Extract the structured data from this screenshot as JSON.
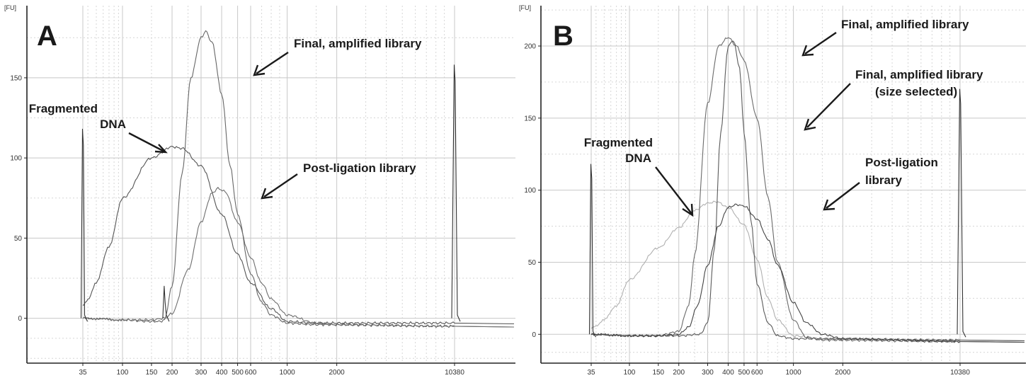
{
  "chart_data": [
    {
      "type": "line",
      "panel": "A",
      "ylabel": "[FU]",
      "x_scale": "log",
      "x_tick_labels": [
        "35",
        "100",
        "150",
        "200",
        "300",
        "400",
        "500",
        "600",
        "1000",
        "2000",
        "10380"
      ],
      "y_ticks": [
        0,
        50,
        100,
        150
      ],
      "ylim": [
        -28,
        195
      ],
      "grid": true,
      "series": [
        {
          "name": "Fragmented DNA",
          "color": "#555555",
          "peak_x": 210,
          "peak_y": 107,
          "x": [
            35,
            36,
            40,
            50,
            70,
            100,
            150,
            200,
            230,
            300,
            400,
            500,
            600,
            800,
            1000,
            1500,
            2000,
            10380
          ],
          "y": [
            8,
            9,
            12,
            22,
            45,
            75,
            100,
            107,
            106,
            95,
            65,
            40,
            22,
            6,
            -2,
            -3,
            -3,
            -3
          ]
        },
        {
          "name": "Final, amplified library",
          "color": "#666666",
          "peak_x": 320,
          "peak_y": 179,
          "x": [
            35,
            100,
            150,
            170,
            180,
            200,
            230,
            260,
            300,
            320,
            350,
            400,
            450,
            500,
            600,
            700,
            800,
            1000,
            1500,
            10380
          ],
          "y": [
            0,
            -1,
            -2,
            -2,
            -1,
            20,
            90,
            150,
            175,
            179,
            172,
            140,
            95,
            65,
            28,
            10,
            2,
            -3,
            -4,
            -5
          ]
        },
        {
          "name": "Post-ligation library",
          "color": "#6e6e6e",
          "peak_x": 380,
          "peak_y": 81,
          "x": [
            35,
            100,
            150,
            180,
            200,
            250,
            300,
            350,
            380,
            420,
            500,
            600,
            700,
            800,
            1000,
            1500,
            2000,
            10380
          ],
          "y": [
            0,
            -1,
            -1,
            0,
            3,
            30,
            60,
            78,
            81,
            79,
            60,
            38,
            22,
            12,
            2,
            -3,
            -4,
            -5
          ]
        }
      ],
      "marker_peaks": [
        {
          "x": 35,
          "y": 118
        },
        {
          "x": 10380,
          "y": 158
        },
        {
          "x": 180,
          "y": 20
        }
      ],
      "annotations": [
        "Fragmented DNA",
        "Final, amplified library",
        "Post-ligation library"
      ]
    },
    {
      "type": "line",
      "panel": "B",
      "ylabel": "[FU]",
      "x_scale": "log",
      "x_tick_labels": [
        "35",
        "100",
        "150",
        "200",
        "300",
        "400",
        "500",
        "600",
        "1000",
        "2000",
        "10380"
      ],
      "y_ticks": [
        0,
        50,
        100,
        150,
        200
      ],
      "ylim": [
        -20,
        228
      ],
      "grid": true,
      "series": [
        {
          "name": "Fragmented DNA",
          "color": "#b0b0b0",
          "peak_x": 340,
          "peak_y": 92,
          "x": [
            35,
            40,
            50,
            70,
            100,
            150,
            200,
            250,
            300,
            340,
            400,
            500,
            600,
            700,
            800,
            1000,
            1500,
            10380
          ],
          "y": [
            4,
            6,
            10,
            20,
            38,
            60,
            74,
            86,
            91,
            92,
            88,
            76,
            52,
            25,
            10,
            -1,
            -3,
            -4
          ]
        },
        {
          "name": "Final, amplified library",
          "color": "#6a6a6a",
          "peak_x": 400,
          "peak_y": 206,
          "x": [
            35,
            100,
            150,
            200,
            230,
            250,
            300,
            350,
            400,
            450,
            500,
            600,
            700,
            800,
            1000,
            1200,
            1500,
            10380
          ],
          "y": [
            0,
            -1,
            -1,
            2,
            20,
            55,
            160,
            200,
            206,
            200,
            190,
            150,
            95,
            50,
            10,
            -2,
            -4,
            -5
          ]
        },
        {
          "name": "Final, amplified library (size selected)",
          "color": "#5a5a5a",
          "peak_x": 410,
          "peak_y": 204,
          "x": [
            35,
            100,
            200,
            270,
            300,
            330,
            360,
            400,
            430,
            470,
            500,
            550,
            600,
            700,
            800,
            1000,
            10380
          ],
          "y": [
            0,
            -1,
            -1,
            0,
            8,
            60,
            140,
            200,
            204,
            185,
            140,
            80,
            35,
            8,
            -1,
            -3,
            -4
          ]
        },
        {
          "name": "Post-ligation library",
          "color": "#444444",
          "peak_x": 450,
          "peak_y": 90,
          "x": [
            35,
            100,
            150,
            200,
            230,
            260,
            300,
            350,
            400,
            450,
            500,
            600,
            700,
            800,
            1000,
            1200,
            1500,
            2000,
            10380
          ],
          "y": [
            0,
            -1,
            -1,
            0,
            5,
            20,
            48,
            75,
            88,
            90,
            89,
            80,
            66,
            48,
            22,
            8,
            0,
            -3,
            -5
          ]
        }
      ],
      "marker_peaks": [
        {
          "x": 35,
          "y": 118
        },
        {
          "x": 10380,
          "y": 170
        }
      ],
      "annotations": [
        "Fragmented DNA",
        "Final, amplified library",
        "Final, amplified library (size selected)",
        "Post-ligation library"
      ]
    }
  ],
  "panels": [
    {
      "letter": "A",
      "fu_label": "[FU]",
      "labels": {
        "fragmented_line1": "Fragmented",
        "fragmented_line2": "DNA",
        "final": "Final, amplified library",
        "postlig": "Post-ligation library"
      }
    },
    {
      "letter": "B",
      "fu_label": "[FU]",
      "labels": {
        "fragmented_line1": "Fragmented",
        "fragmented_line2": "DNA",
        "final": "Final, amplified library",
        "final_sel_line1": "Final, amplified library",
        "final_sel_line2": "(size selected)",
        "postlig_line1": "Post-ligation",
        "postlig_line2": "library"
      }
    }
  ]
}
